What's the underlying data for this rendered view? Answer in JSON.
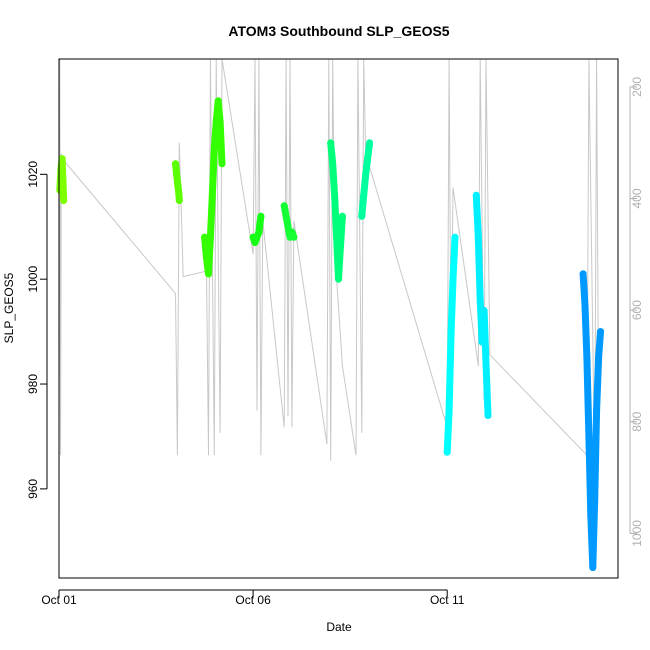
{
  "chart_data": {
    "type": "scatter",
    "title": "ATOM3 Southbound SLP_GEOS5",
    "xlabel": "Date",
    "ylabel": "SLP_GEOS5",
    "x_unit": "day",
    "xlim": [
      0.0,
      14.4
    ],
    "ylim": [
      943,
      1042
    ],
    "x_ticks": [
      {
        "value": 0,
        "label": "Oct 01"
      },
      {
        "value": 5,
        "label": "Oct 06"
      },
      {
        "value": 10,
        "label": "Oct 11"
      }
    ],
    "y_ticks": [
      960,
      980,
      1000,
      1020
    ],
    "y2_label": "",
    "y2_lim": [
      1080,
      150
    ],
    "y2_ticks": [
      200,
      400,
      600,
      800,
      1000
    ],
    "grid": false,
    "legend": "none",
    "colors": {
      "altitude_trace": "#c8c8c8",
      "axis": "#000000",
      "right_axis": "#b0b0b0"
    },
    "altitude_trace": [
      [
        0.0,
        1005
      ],
      [
        0.02,
        150
      ],
      [
        0.04,
        860
      ],
      [
        0.06,
        320
      ],
      [
        0.1,
        330
      ],
      [
        3.0,
        570
      ],
      [
        3.05,
        860
      ],
      [
        3.1,
        300
      ],
      [
        3.2,
        540
      ],
      [
        3.8,
        530
      ],
      [
        3.85,
        860
      ],
      [
        3.9,
        150
      ],
      [
        4.0,
        860
      ],
      [
        4.05,
        150
      ],
      [
        4.15,
        820
      ],
      [
        4.2,
        150
      ],
      [
        5.0,
        500
      ],
      [
        5.05,
        150
      ],
      [
        5.1,
        780
      ],
      [
        5.15,
        150
      ],
      [
        5.2,
        860
      ],
      [
        5.25,
        440
      ],
      [
        5.8,
        810
      ],
      [
        5.85,
        150
      ],
      [
        5.9,
        790
      ],
      [
        5.95,
        150
      ],
      [
        6.0,
        810
      ],
      [
        6.05,
        440
      ],
      [
        6.9,
        840
      ],
      [
        6.95,
        150
      ],
      [
        7.0,
        870
      ],
      [
        7.05,
        150
      ],
      [
        7.1,
        490
      ],
      [
        7.3,
        700
      ],
      [
        7.65,
        860
      ],
      [
        7.7,
        150
      ],
      [
        7.8,
        820
      ],
      [
        7.85,
        150
      ],
      [
        7.9,
        320
      ],
      [
        10.0,
        810
      ],
      [
        10.05,
        150
      ],
      [
        10.1,
        720
      ],
      [
        10.15,
        380
      ],
      [
        10.8,
        700
      ],
      [
        10.85,
        150
      ],
      [
        10.95,
        760
      ],
      [
        11.0,
        150
      ],
      [
        11.1,
        680
      ],
      [
        13.6,
        860
      ],
      [
        13.65,
        150
      ],
      [
        13.8,
        900
      ],
      [
        13.85,
        150
      ],
      [
        13.9,
        800
      ]
    ],
    "series": [
      {
        "color": "#7dff00",
        "points": [
          [
            0.02,
            1017
          ],
          [
            0.05,
            1021
          ],
          [
            0.08,
            1023
          ],
          [
            0.1,
            1019
          ],
          [
            0.12,
            1015
          ]
        ]
      },
      {
        "color": "#5cff00",
        "points": [
          [
            3.0,
            1022
          ],
          [
            3.03,
            1020
          ],
          [
            3.06,
            1018
          ],
          [
            3.09,
            1016
          ],
          [
            3.1,
            1015
          ]
        ]
      },
      {
        "color": "#33ff00",
        "points": [
          [
            3.75,
            1008
          ],
          [
            3.8,
            1004
          ],
          [
            3.85,
            1001
          ],
          [
            3.9,
            1008
          ],
          [
            3.95,
            1016
          ],
          [
            4.0,
            1025
          ],
          [
            4.05,
            1030
          ],
          [
            4.1,
            1034
          ],
          [
            4.15,
            1030
          ],
          [
            4.2,
            1022
          ]
        ]
      },
      {
        "color": "#14ff14",
        "points": [
          [
            5.0,
            1008
          ],
          [
            5.05,
            1007
          ],
          [
            5.1,
            1008
          ],
          [
            5.15,
            1009
          ],
          [
            5.2,
            1012
          ]
        ]
      },
      {
        "color": "#14ff33",
        "points": [
          [
            5.8,
            1014
          ],
          [
            5.85,
            1012
          ],
          [
            5.9,
            1010
          ],
          [
            5.95,
            1008
          ],
          [
            6.0,
            1009
          ],
          [
            6.05,
            1008
          ]
        ]
      },
      {
        "color": "#00ff7a",
        "points": [
          [
            7.0,
            1026
          ],
          [
            7.05,
            1022
          ],
          [
            7.1,
            1016
          ],
          [
            7.15,
            1008
          ],
          [
            7.2,
            1000
          ],
          [
            7.25,
            1006
          ],
          [
            7.3,
            1012
          ]
        ]
      },
      {
        "color": "#00ff9e",
        "points": [
          [
            7.8,
            1012
          ],
          [
            7.85,
            1016
          ],
          [
            7.9,
            1020
          ],
          [
            7.95,
            1023
          ],
          [
            8.0,
            1026
          ]
        ]
      },
      {
        "color": "#00ffff",
        "points": [
          [
            10.0,
            967
          ],
          [
            10.05,
            975
          ],
          [
            10.1,
            990
          ],
          [
            10.15,
            1000
          ],
          [
            10.2,
            1008
          ]
        ]
      },
      {
        "color": "#00f0ff",
        "points": [
          [
            10.75,
            1016
          ],
          [
            10.8,
            1008
          ],
          [
            10.85,
            996
          ],
          [
            10.9,
            988
          ],
          [
            10.95,
            994
          ],
          [
            11.0,
            984
          ],
          [
            11.05,
            974
          ]
        ]
      },
      {
        "color": "#0099ff",
        "points": [
          [
            13.5,
            1001
          ],
          [
            13.55,
            995
          ],
          [
            13.6,
            985
          ],
          [
            13.65,
            970
          ],
          [
            13.7,
            955
          ],
          [
            13.75,
            945
          ],
          [
            13.8,
            958
          ],
          [
            13.85,
            975
          ],
          [
            13.9,
            985
          ],
          [
            13.95,
            990
          ]
        ]
      }
    ]
  }
}
